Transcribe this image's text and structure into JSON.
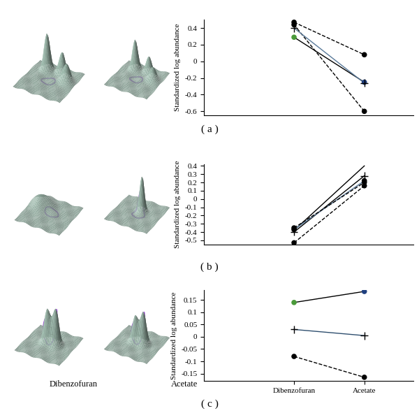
{
  "chart_data": [
    {
      "type": "line",
      "panel": "( a )",
      "y_label": "Standardized log abundance",
      "categories": [
        null,
        null
      ],
      "tick_labels": "y",
      "ylim": [
        -0.65,
        0.5
      ],
      "yticks": [
        0.4,
        0.2,
        0,
        -0.2,
        -0.4,
        -0.6
      ],
      "series": [
        {
          "color": "#000000",
          "line_style": "dashed",
          "marker": "circle",
          "colors": [
            "#000000",
            "#000000"
          ],
          "values": [
            0.47,
            0.08
          ]
        },
        {
          "color": "#000000",
          "line_style": "dashed",
          "marker": "circle",
          "colors": [
            "#000000",
            "#000000"
          ],
          "values": [
            0.44,
            -0.6
          ]
        },
        {
          "color": "#000000",
          "line_style": "solid",
          "marker": "circle",
          "colors": [
            "#4a9a3a",
            "#1f3f7f"
          ],
          "values": [
            0.29,
            -0.25
          ]
        },
        {
          "color": "#5a7a9a",
          "line_style": "solid",
          "marker": "plus",
          "colors": [
            "#000000",
            "#000000"
          ],
          "values": [
            0.4,
            -0.26
          ]
        }
      ]
    },
    {
      "type": "line",
      "panel": "( b )",
      "y_label": "Standardized log abundance",
      "categories": [
        null,
        null
      ],
      "tick_labels": "y",
      "ylim": [
        -0.55,
        0.42
      ],
      "yticks": [
        0.4,
        0.3,
        0.2,
        0.1,
        0,
        -0.1,
        -0.2,
        -0.3,
        -0.4,
        -0.5
      ],
      "series": [
        {
          "color": "#000000",
          "line_style": "solid",
          "values": [
            -0.38,
            0.4
          ]
        },
        {
          "color": "#000000",
          "line_style": "solid",
          "marker": "plus",
          "colors": [
            "#000000",
            "#000000"
          ],
          "values": [
            -0.4,
            0.28
          ]
        },
        {
          "color": "#5a7a9a",
          "line_style": "solid",
          "marker": "circle",
          "colors": [
            "#000000",
            "#000000"
          ],
          "values": [
            -0.37,
            0.22
          ]
        },
        {
          "color": "#000000",
          "line_style": "dashed",
          "marker": "circle",
          "colors": [
            "#000000",
            "#000000"
          ],
          "values": [
            -0.53,
            0.16
          ]
        },
        {
          "color": "#000000",
          "line_style": "dashed",
          "marker": "circle",
          "colors": [
            "#000000",
            "#000000"
          ],
          "values": [
            -0.35,
            0.2
          ]
        }
      ]
    },
    {
      "type": "line",
      "panel": "( c )",
      "y_label": "Standardized log abundance",
      "categories": [
        "Dibenzofuran",
        "Acetate"
      ],
      "ylim": [
        -0.18,
        0.19
      ],
      "yticks": [
        0.15,
        0.1,
        0.05,
        0,
        -0.05,
        -0.1,
        -0.15
      ],
      "series": [
        {
          "color": "#000000",
          "line_style": "solid",
          "marker": "circle",
          "colors": [
            "#4a9a3a",
            "#1f3f7f"
          ],
          "values": [
            0.14,
            0.185
          ]
        },
        {
          "color": "#2f4f6f",
          "line_style": "solid",
          "marker": "plus",
          "colors": [
            "#000000",
            "#000000"
          ],
          "values": [
            0.03,
            0.005
          ]
        },
        {
          "color": "#000000",
          "line_style": "dashed",
          "marker": "circle",
          "colors": [
            "#000000",
            "#000000"
          ],
          "values": [
            -0.08,
            -0.165
          ]
        }
      ]
    }
  ],
  "images": {
    "labels": [
      "Dibenzofuran",
      "Acetate"
    ]
  }
}
